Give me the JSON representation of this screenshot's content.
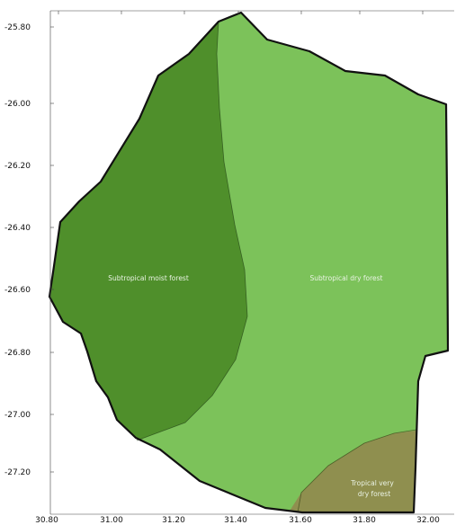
{
  "map": {
    "y_axis": {
      "ticks": [
        "-25.80",
        "-26.00",
        "-26.20",
        "-26.40",
        "-26.60",
        "-26.80",
        "-27.00",
        "-27.20"
      ]
    },
    "x_axis": {
      "ticks": [
        "30.80",
        "31.00",
        "31.20",
        "31.40",
        "31.60",
        "31.80",
        "32.00"
      ]
    },
    "zones": [
      {
        "label": "Subtropical moist forest",
        "color": "#4f8f2b"
      },
      {
        "label": "Subtropical dry forest",
        "color": "#7cc25a"
      },
      {
        "label_lines": [
          "Tropical very",
          "dry forest"
        ],
        "color": "#8f8f4f"
      }
    ],
    "border_color": "#111111"
  }
}
